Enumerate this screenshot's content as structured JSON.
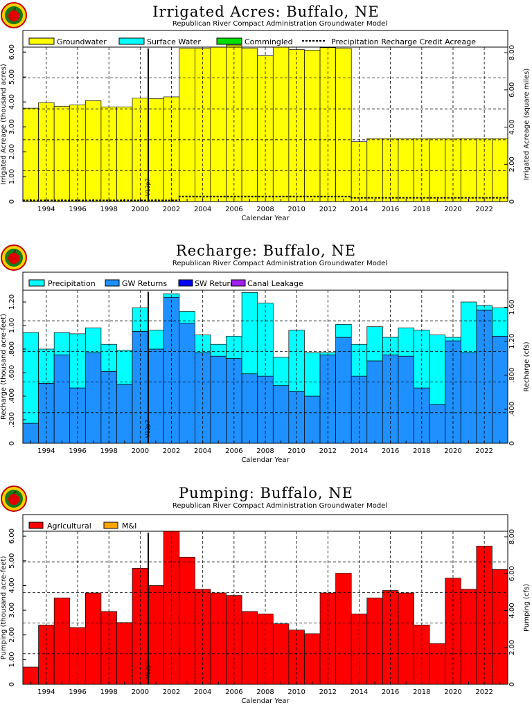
{
  "subtitle": "Republican River Compact Administration Groundwater Model",
  "xlabel": "Calendar Year",
  "vline_label": "V12p7",
  "colors": {
    "groundwater": "#ffff00",
    "surface_water": "#00ffff",
    "commingled": "#00e000",
    "precip_recharge": "#00ffff",
    "gw_returns": "#1e90ff",
    "sw_returns": "#0000ff",
    "canal_leakage": "#a020f0",
    "agricultural": "#ff0000",
    "mi": "#ffa500"
  },
  "chart_data": [
    {
      "type": "bar",
      "title": "Irrigated Acres: Buffalo, NE",
      "ylabel": "Irrigated Acreage (thousand acres)",
      "y2label": "Irrigated Acreage (square miles)",
      "xlim": [
        1993,
        2023
      ],
      "ylim": [
        0,
        6.2
      ],
      "y2_ticks": [
        "0",
        "2.00",
        "4.00",
        "6.00",
        "8.00"
      ],
      "legend": [
        "Groundwater",
        "Surface Water",
        "Commingled",
        "Precipitation Recharge Credit Acreage"
      ],
      "years": [
        1993,
        1994,
        1995,
        1996,
        1997,
        1998,
        1999,
        2000,
        2001,
        2002,
        2003,
        2004,
        2005,
        2006,
        2007,
        2008,
        2009,
        2010,
        2011,
        2012,
        2013,
        2014,
        2015,
        2016,
        2017,
        2018,
        2019,
        2020,
        2021,
        2022,
        2023
      ],
      "series": [
        {
          "name": "Groundwater",
          "values": [
            3.75,
            3.97,
            3.82,
            3.88,
            4.05,
            3.8,
            3.8,
            4.15,
            4.13,
            4.2,
            6.15,
            6.15,
            6.2,
            6.28,
            6.15,
            5.85,
            6.2,
            6.1,
            6.08,
            6.18,
            6.15,
            2.4,
            2.53,
            2.53,
            2.53,
            2.53,
            2.53,
            2.53,
            2.53,
            2.53,
            2.53
          ]
        },
        {
          "name": "Precipitation Recharge Credit Acreage",
          "values": [
            0.05,
            0.05,
            0.05,
            0.05,
            0.05,
            0.05,
            0.05,
            0.05,
            0.05,
            0.05,
            0.2,
            0.2,
            0.2,
            0.2,
            0.2,
            0.2,
            0.2,
            0.2,
            0.2,
            0.2,
            0.2,
            0.15,
            0.15,
            0.15,
            0.15,
            0.15,
            0.15,
            0.15,
            0.15,
            0.15,
            0.15
          ]
        }
      ]
    },
    {
      "type": "bar",
      "title": "Recharge: Buffalo, NE",
      "ylabel": "Recharge (thousand acre-feet)",
      "y2label": "Recharge (cfs)",
      "xlim": [
        1993,
        2023
      ],
      "ylim": [
        0,
        1.3
      ],
      "y2_ticks": [
        "0",
        ".400",
        ".800",
        "1.20",
        "1.60"
      ],
      "legend": [
        "Precipitation",
        "GW Returns",
        "SW Returns",
        "Canal Leakage"
      ],
      "years": [
        1993,
        1994,
        1995,
        1996,
        1997,
        1998,
        1999,
        2000,
        2001,
        2002,
        2003,
        2004,
        2005,
        2006,
        2007,
        2008,
        2009,
        2010,
        2011,
        2012,
        2013,
        2014,
        2015,
        2016,
        2017,
        2018,
        2019,
        2020,
        2021,
        2022,
        2023
      ],
      "series": [
        {
          "name": "GW Returns",
          "values": [
            0.17,
            0.51,
            0.75,
            0.47,
            0.77,
            0.61,
            0.5,
            0.95,
            0.8,
            1.24,
            1.02,
            0.77,
            0.74,
            0.72,
            0.59,
            0.57,
            0.49,
            0.44,
            0.4,
            0.75,
            0.9,
            0.57,
            0.7,
            0.75,
            0.74,
            0.47,
            0.33,
            0.87,
            0.77,
            1.13,
            0.91
          ]
        },
        {
          "name": "Precipitation",
          "values": [
            0.77,
            0.29,
            0.19,
            0.46,
            0.21,
            0.23,
            0.29,
            0.2,
            0.16,
            0.03,
            0.1,
            0.15,
            0.1,
            0.19,
            0.69,
            0.62,
            0.24,
            0.52,
            0.37,
            0.02,
            0.11,
            0.27,
            0.29,
            0.15,
            0.24,
            0.49,
            0.59,
            0.03,
            0.43,
            0.04,
            0.24
          ]
        }
      ]
    },
    {
      "type": "bar",
      "title": "Pumping: Buffalo, NE",
      "ylabel": "Pumping (thousand acre-feet)",
      "y2label": "Pumping (cfs)",
      "xlim": [
        1993,
        2023
      ],
      "ylim": [
        0,
        6.2
      ],
      "y2_ticks": [
        "0",
        "2.00",
        "4.00",
        "6.00",
        "8.00"
      ],
      "legend": [
        "Agricultural",
        "M&I"
      ],
      "years": [
        1993,
        1994,
        1995,
        1996,
        1997,
        1998,
        1999,
        2000,
        2001,
        2002,
        2003,
        2004,
        2005,
        2006,
        2007,
        2008,
        2009,
        2010,
        2011,
        2012,
        2013,
        2014,
        2015,
        2016,
        2017,
        2018,
        2019,
        2020,
        2021,
        2022,
        2023
      ],
      "series": [
        {
          "name": "Agricultural",
          "values": [
            0.7,
            2.4,
            3.5,
            2.3,
            3.7,
            2.95,
            2.5,
            4.7,
            4.0,
            6.2,
            5.15,
            3.85,
            3.7,
            3.6,
            2.95,
            2.85,
            2.45,
            2.2,
            2.05,
            3.7,
            4.5,
            2.85,
            3.5,
            3.8,
            3.7,
            2.4,
            1.65,
            4.3,
            3.85,
            5.6,
            4.65
          ]
        }
      ]
    }
  ]
}
